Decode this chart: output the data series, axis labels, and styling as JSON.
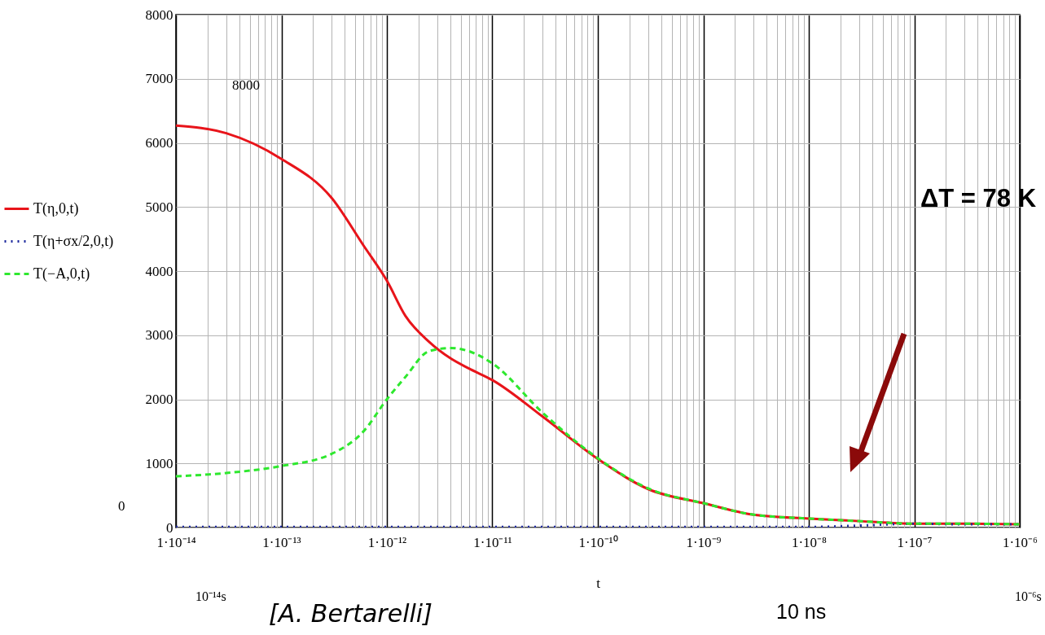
{
  "chart_data": {
    "type": "line",
    "xlabel": "t",
    "log": "x",
    "grid": true,
    "legend": "left",
    "xlim": [
      1e-14,
      1e-06
    ],
    "ylim": [
      0,
      8000
    ],
    "xticks": [
      {
        "value": 1e-14,
        "label": "1·10⁻¹⁴"
      },
      {
        "value": 1e-13,
        "label": "1·10⁻¹³"
      },
      {
        "value": 1e-12,
        "label": "1·10⁻¹²"
      },
      {
        "value": 1e-11,
        "label": "1·10⁻¹¹"
      },
      {
        "value": 1e-10,
        "label": "1·10⁻¹⁰"
      },
      {
        "value": 1e-09,
        "label": "1·10⁻⁹"
      },
      {
        "value": 1e-08,
        "label": "1·10⁻⁸"
      },
      {
        "value": 1e-07,
        "label": "1·10⁻⁷"
      },
      {
        "value": 1e-06,
        "label": "1·10⁻⁶"
      }
    ],
    "yticks": [
      0,
      1000,
      2000,
      3000,
      4000,
      5000,
      6000,
      7000,
      8000
    ],
    "x": [
      1e-14,
      3e-14,
      1e-13,
      3e-13,
      6e-13,
      1e-12,
      1.5e-12,
      2.5e-12,
      4e-12,
      6e-12,
      1e-11,
      3e-11,
      1e-10,
      3e-10,
      1e-09,
      3e-09,
      1e-08,
      3e-08,
      1e-07,
      3e-07,
      1e-06
    ],
    "series": [
      {
        "name": "T(η,0,t)",
        "color": "#e8141a",
        "line_style": "solid",
        "values": [
          6270,
          6150,
          5750,
          5140,
          4400,
          3850,
          3300,
          2900,
          2640,
          2480,
          2300,
          1730,
          1070,
          600,
          380,
          200,
          140,
          100,
          60,
          60,
          50
        ]
      },
      {
        "name": "T(η+σx/2,0,t)",
        "color": "#1f2a9e",
        "line_style": "dotted",
        "values": [
          10,
          10,
          10,
          10,
          10,
          10,
          10,
          10,
          10,
          10,
          10,
          10,
          10,
          10,
          10,
          10,
          10,
          30,
          60,
          50,
          50
        ]
      },
      {
        "name": "T(−A,0,t)",
        "color": "#2ee82e",
        "line_style": "dashed",
        "values": [
          800,
          850,
          960,
          1150,
          1500,
          2000,
          2350,
          2750,
          2800,
          2750,
          2560,
          1790,
          1080,
          610,
          380,
          200,
          140,
          100,
          60,
          60,
          50
        ]
      }
    ],
    "annotations": [
      "ΔT = 78 K",
      "8000",
      "0",
      "10⁻¹⁴s",
      "10⁻⁶s",
      "[A. Bertarelli]",
      "10 ns"
    ]
  }
}
